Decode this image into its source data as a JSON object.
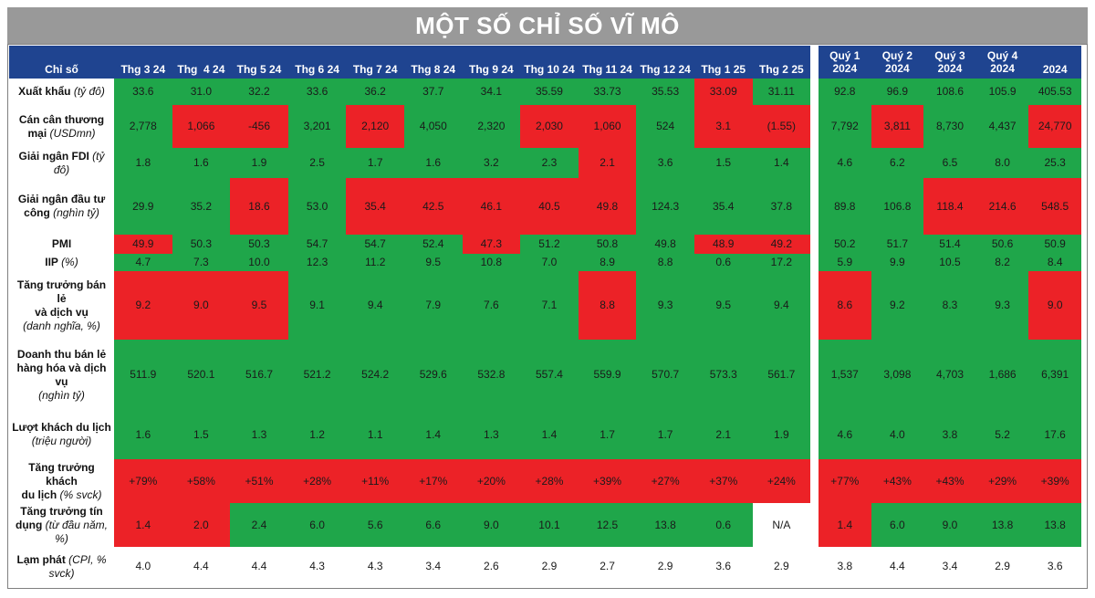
{
  "title": "MỘT SỐ CHỈ SỐ VĨ MÔ",
  "colors": {
    "header": "#1f4490",
    "green": "#1fa64a",
    "red": "#ec2227",
    "title_bar": "#999999"
  },
  "header": {
    "label_col": "Chỉ số",
    "months": [
      "Thg 3 24",
      "Thg  4 24",
      "Thg 5 24",
      "Thg 6 24",
      "Thg 7 24",
      "Thg 8 24",
      "Thg 9 24",
      "Thg 10 24",
      "Thg 11 24",
      "Thg 12 24",
      "Thg 1 25",
      "Thg 2 25"
    ],
    "periods": [
      {
        "l1": "Quý 1",
        "l2": "2024"
      },
      {
        "l1": "Quý 2",
        "l2": "2024"
      },
      {
        "l1": "Quý 3",
        "l2": "2024"
      },
      {
        "l1": "Quý 4",
        "l2": "2024"
      },
      {
        "l1": "",
        "l2": "2024"
      }
    ]
  },
  "rows": [
    {
      "lines": [
        {
          "b": "Xuất khẩu ",
          "i": "(tỷ đô)"
        }
      ],
      "months": [
        "33.6",
        "31.0",
        "32.2",
        "33.6",
        "36.2",
        "37.7",
        "34.1",
        "35.59",
        "33.73",
        "35.53",
        "33.09",
        "31.11"
      ],
      "month_status": [
        "g",
        "g",
        "g",
        "g",
        "g",
        "g",
        "g",
        "g",
        "g",
        "g",
        "r",
        "g"
      ],
      "periods": [
        "92.8",
        "96.9",
        "108.6",
        "105.9",
        "405.53"
      ],
      "period_status": [
        "g",
        "g",
        "g",
        "g",
        "g"
      ]
    },
    {
      "lines": [
        {
          "b": "Cán cân thương",
          "i": ""
        },
        {
          "b": "mại ",
          "i": "(USDmn)"
        }
      ],
      "months": [
        "2,778",
        "1,066",
        "-456",
        "3,201",
        "2,120",
        "4,050",
        "2,320",
        "2,030",
        "1,060",
        "524",
        "3.1",
        "(1.55)"
      ],
      "month_status": [
        "g",
        "r",
        "r",
        "g",
        "r",
        "g",
        "g",
        "r",
        "r",
        "g",
        "r",
        "r"
      ],
      "periods": [
        "7,792",
        "3,811",
        "8,730",
        "4,437",
        "24,770"
      ],
      "period_status": [
        "g",
        "r",
        "g",
        "g",
        "r"
      ]
    },
    {
      "lines": [
        {
          "b": "Giải ngân FDI ",
          "i": "(tỷ đô)"
        }
      ],
      "months": [
        "1.8",
        "1.6",
        "1.9",
        "2.5",
        "1.7",
        "1.6",
        "3.2",
        "2.3",
        "2.1",
        "3.6",
        "1.5",
        "1.4"
      ],
      "month_status": [
        "g",
        "g",
        "g",
        "g",
        "g",
        "g",
        "g",
        "g",
        "r",
        "g",
        "g",
        "g"
      ],
      "periods": [
        "4.6",
        "6.2",
        "6.5",
        "8.0",
        "25.3"
      ],
      "period_status": [
        "g",
        "g",
        "g",
        "g",
        "g"
      ]
    },
    {
      "lines": [
        {
          "b": "Giải ngân đầu tư",
          "i": ""
        },
        {
          "b": "công ",
          "i": "(nghìn tỷ)"
        }
      ],
      "months": [
        "29.9",
        "35.2",
        "18.6",
        "53.0",
        "35.4",
        "42.5",
        "46.1",
        "40.5",
        "49.8",
        "124.3",
        "35.4",
        "37.8"
      ],
      "month_status": [
        "g",
        "g",
        "r",
        "g",
        "r",
        "r",
        "r",
        "r",
        "r",
        "g",
        "g",
        "g"
      ],
      "periods": [
        "89.8",
        "106.8",
        "118.4",
        "214.6",
        "548.5"
      ],
      "period_status": [
        "g",
        "g",
        "r",
        "r",
        "r"
      ]
    },
    {
      "lines": [
        {
          "b": "PMI",
          "i": ""
        }
      ],
      "months": [
        "49.9",
        "50.3",
        "50.3",
        "54.7",
        "54.7",
        "52.4",
        "47.3",
        "51.2",
        "50.8",
        "49.8",
        "48.9",
        "49.2"
      ],
      "month_status": [
        "r",
        "g",
        "g",
        "g",
        "g",
        "g",
        "r",
        "g",
        "g",
        "g",
        "r",
        "r"
      ],
      "periods": [
        "50.2",
        "51.7",
        "51.4",
        "50.6",
        "50.9"
      ],
      "period_status": [
        "g",
        "g",
        "g",
        "g",
        "g"
      ]
    },
    {
      "lines": [
        {
          "b": "IIP ",
          "i": "(%)"
        }
      ],
      "months": [
        "4.7",
        "7.3",
        "10.0",
        "12.3",
        "11.2",
        "9.5",
        "10.8",
        "7.0",
        "8.9",
        "8.8",
        "0.6",
        "17.2"
      ],
      "month_status": [
        "g",
        "g",
        "g",
        "g",
        "g",
        "g",
        "g",
        "g",
        "g",
        "g",
        "g",
        "g"
      ],
      "periods": [
        "5.9",
        "9.9",
        "10.5",
        "8.2",
        "8.4"
      ],
      "period_status": [
        "g",
        "g",
        "g",
        "g",
        "g"
      ]
    },
    {
      "lines": [
        {
          "b": "Tăng trưởng bán lẻ",
          "i": ""
        },
        {
          "b": "và dịch vụ",
          "i": ""
        },
        {
          "b": "",
          "i": "(danh nghĩa, %)"
        }
      ],
      "months": [
        "9.2",
        "9.0",
        "9.5",
        "9.1",
        "9.4",
        "7.9",
        "7.6",
        "7.1",
        "8.8",
        "9.3",
        "9.5",
        "9.4"
      ],
      "month_status": [
        "r",
        "r",
        "r",
        "g",
        "g",
        "g",
        "g",
        "g",
        "r",
        "g",
        "g",
        "g"
      ],
      "periods": [
        "8.6",
        "9.2",
        "8.3",
        "9.3",
        "9.0"
      ],
      "period_status": [
        "r",
        "g",
        "g",
        "g",
        "r"
      ]
    },
    {
      "lines": [
        {
          "b": "Doanh thu bán lẻ",
          "i": ""
        },
        {
          "b": "hàng hóa và dịch",
          "i": ""
        },
        {
          "b": "vụ",
          "i": ""
        },
        {
          "b": "",
          "i": "(nghìn tỷ)"
        }
      ],
      "months": [
        "511.9",
        "520.1",
        "516.7",
        "521.2",
        "524.2",
        "529.6",
        "532.8",
        "557.4",
        "559.9",
        "570.7",
        "573.3",
        "561.7"
      ],
      "month_status": [
        "g",
        "g",
        "g",
        "g",
        "g",
        "g",
        "g",
        "g",
        "g",
        "g",
        "g",
        "g"
      ],
      "periods": [
        "1,537",
        "3,098",
        "4,703",
        "1,686",
        "6,391"
      ],
      "period_status": [
        "g",
        "g",
        "g",
        "g",
        "g"
      ]
    },
    {
      "lines": [
        {
          "b": "Lượt khách du lịch",
          "i": ""
        },
        {
          "b": "",
          "i": "(triệu người)"
        }
      ],
      "months": [
        "1.6",
        "1.5",
        "1.3",
        "1.2",
        "1.1",
        "1.4",
        "1.3",
        "1.4",
        "1.7",
        "1.7",
        "2.1",
        "1.9"
      ],
      "month_status": [
        "g",
        "g",
        "g",
        "g",
        "g",
        "g",
        "g",
        "g",
        "g",
        "g",
        "g",
        "g"
      ],
      "periods": [
        "4.6",
        "4.0",
        "3.8",
        "5.2",
        "17.6"
      ],
      "period_status": [
        "g",
        "g",
        "g",
        "g",
        "g"
      ]
    },
    {
      "lines": [
        {
          "b": "Tăng trưởng khách",
          "i": ""
        },
        {
          "b": "du lịch ",
          "i": "(% svck)"
        }
      ],
      "months": [
        "+79%",
        "+58%",
        "+51%",
        "+28%",
        "+11%",
        "+17%",
        "+20%",
        "+28%",
        "+39%",
        "+27%",
        "+37%",
        "+24%"
      ],
      "month_status": [
        "r",
        "r",
        "r",
        "r",
        "r",
        "r",
        "r",
        "r",
        "r",
        "r",
        "r",
        "r"
      ],
      "periods": [
        "+77%",
        "+43%",
        "+43%",
        "+29%",
        "+39%"
      ],
      "period_status": [
        "r",
        "r",
        "r",
        "r",
        "r"
      ]
    },
    {
      "lines": [
        {
          "b": "Tăng trưởng tín",
          "i": ""
        },
        {
          "b": "dụng ",
          "i": "(từ đầu năm,"
        },
        {
          "b": "",
          "i": "%)"
        }
      ],
      "months": [
        "1.4",
        "2.0",
        "2.4",
        "6.0",
        "5.6",
        "6.6",
        "9.0",
        "10.1",
        "12.5",
        "13.8",
        "0.6",
        "N/A"
      ],
      "month_status": [
        "r",
        "r",
        "g",
        "g",
        "g",
        "g",
        "g",
        "g",
        "g",
        "g",
        "g",
        "w"
      ],
      "periods": [
        "1.4",
        "6.0",
        "9.0",
        "13.8",
        "13.8"
      ],
      "period_status": [
        "r",
        "g",
        "g",
        "g",
        "g"
      ]
    },
    {
      "lines": [
        {
          "b": "Lạm phát ",
          "i": "(CPI, %"
        },
        {
          "b": "",
          "i": "svck)"
        }
      ],
      "months": [
        "4.0",
        "4.4",
        "4.4",
        "4.3",
        "4.3",
        "3.4",
        "2.6",
        "2.9",
        "2.7",
        "2.9",
        "3.6",
        "2.9"
      ],
      "month_status": [
        "w",
        "w",
        "w",
        "w",
        "w",
        "w",
        "w",
        "w",
        "w",
        "w",
        "w",
        "w"
      ],
      "periods": [
        "3.8",
        "4.4",
        "3.4",
        "2.9",
        "3.6"
      ],
      "period_status": [
        "w",
        "w",
        "w",
        "w",
        "w"
      ]
    }
  ]
}
